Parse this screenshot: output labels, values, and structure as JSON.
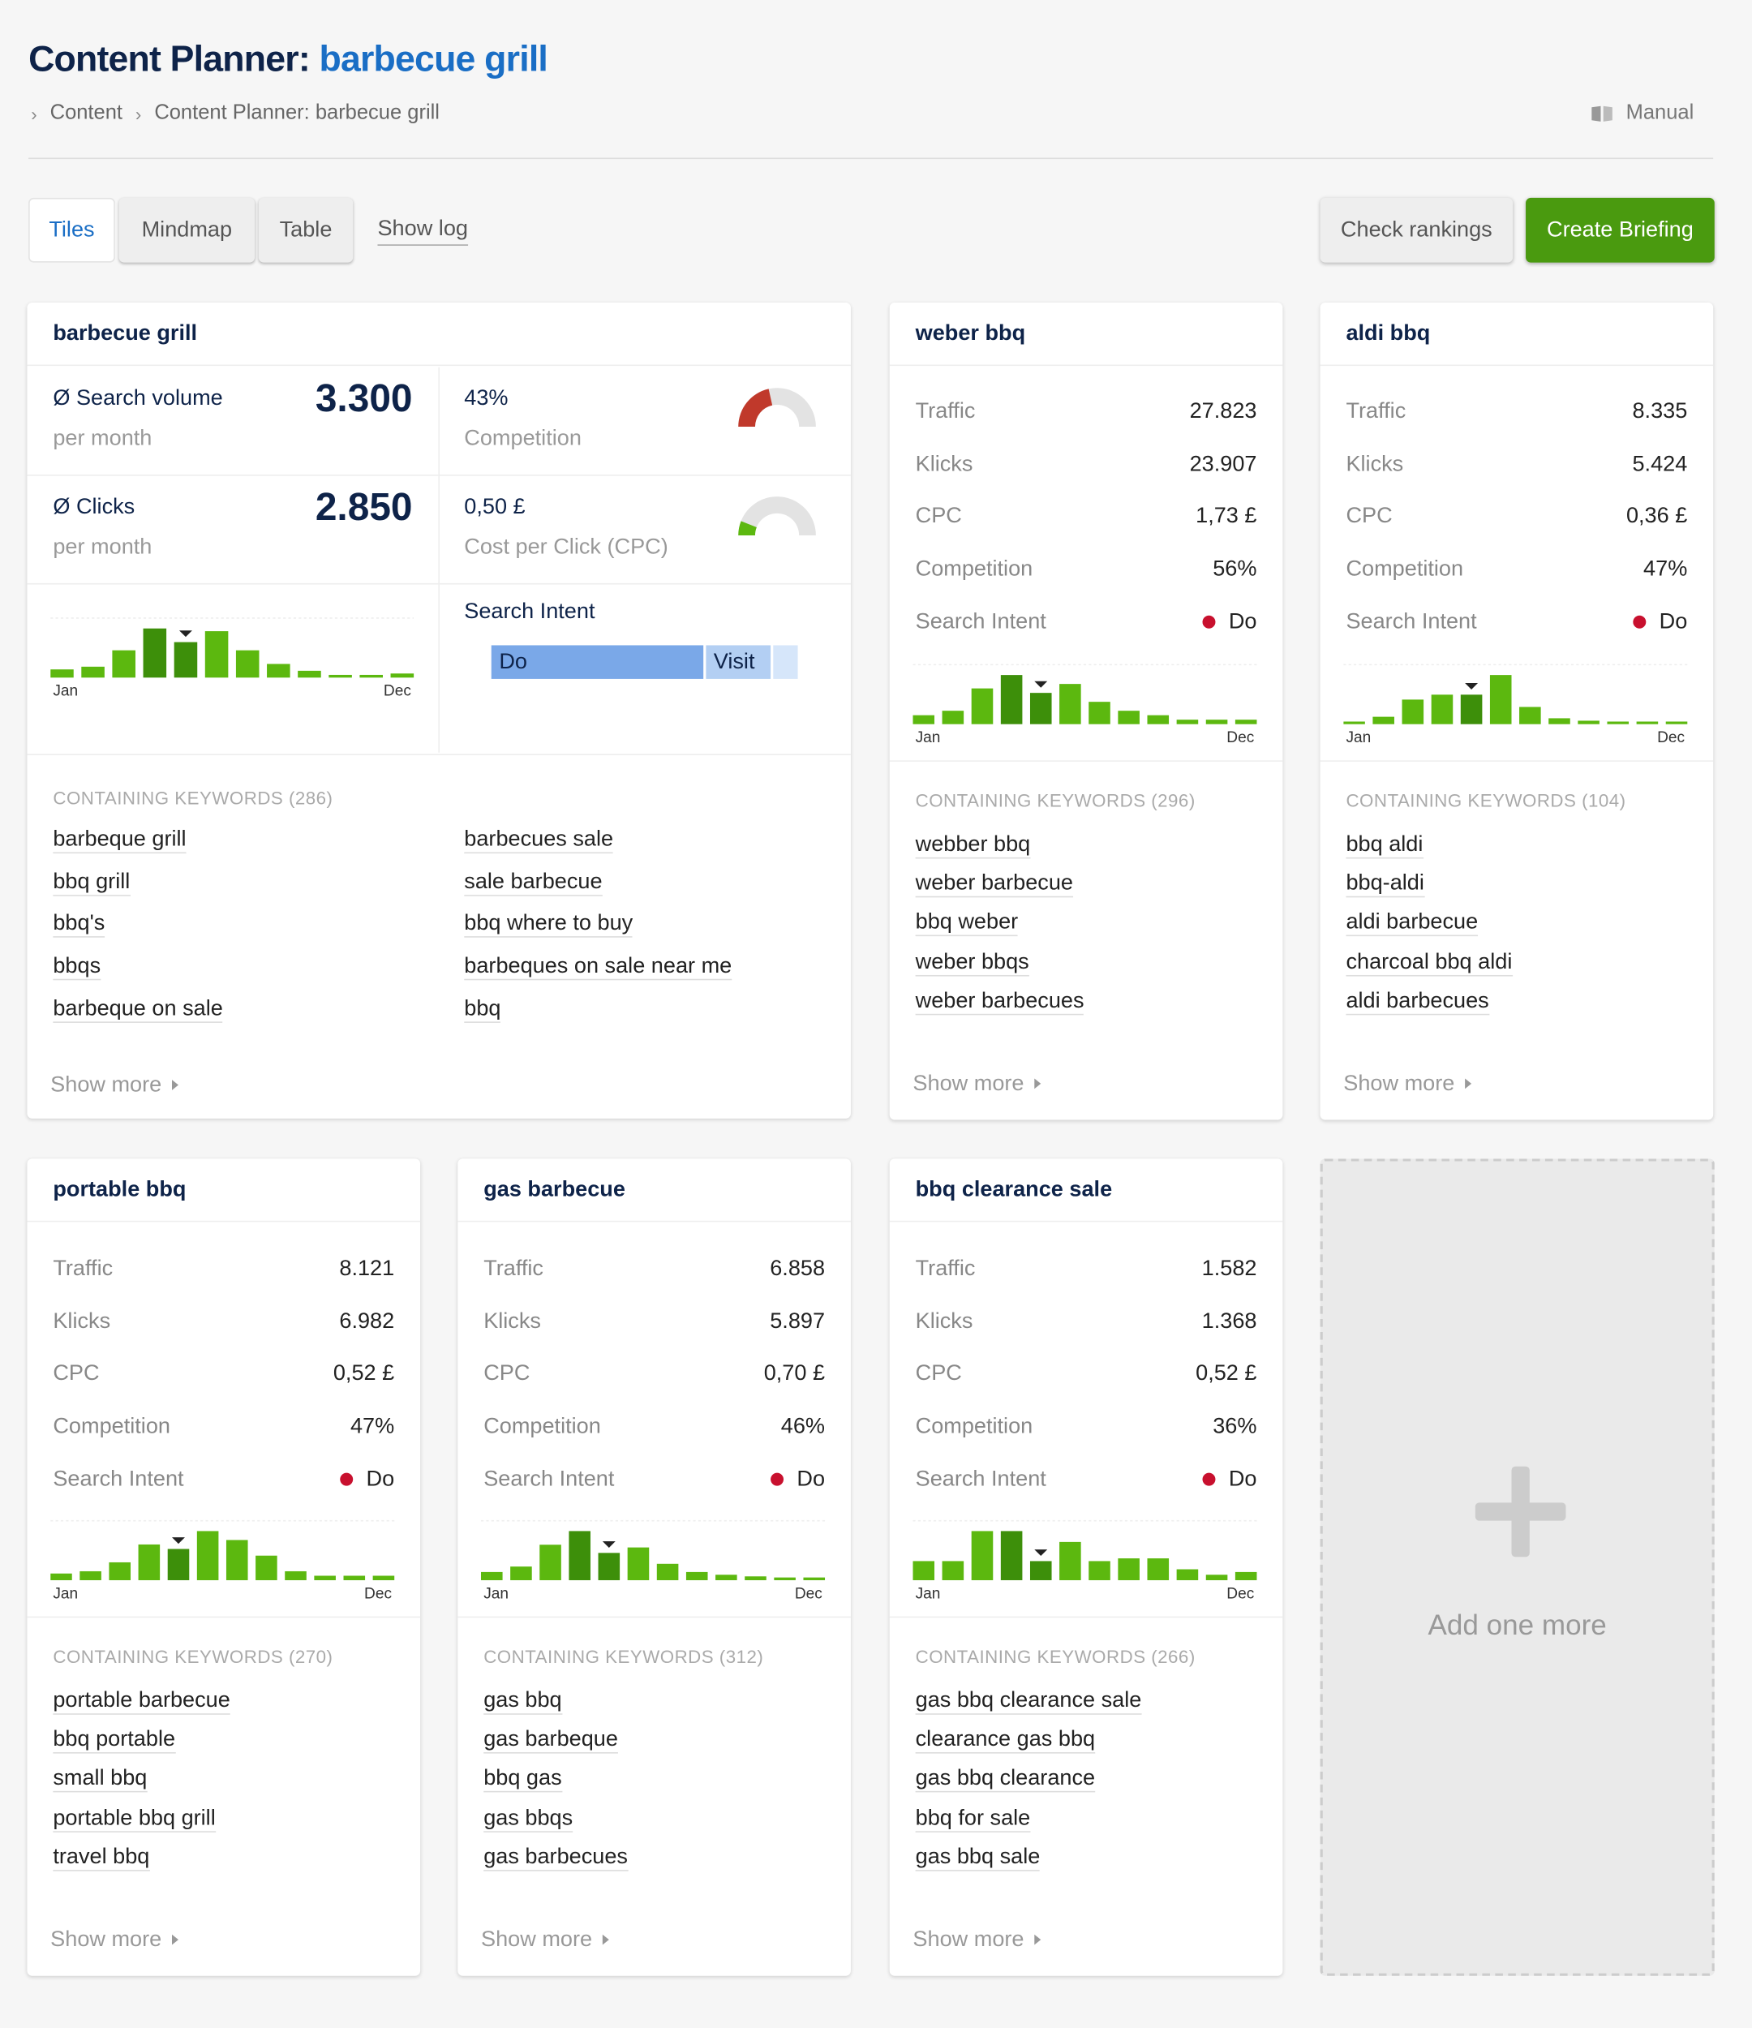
{
  "title": {
    "prefix": "Content Planner:",
    "keyword": "barbecue grill"
  },
  "breadcrumb": [
    "Content",
    "Content Planner: barbecue grill"
  ],
  "manual_label": "Manual",
  "tabs": [
    "Tiles",
    "Mindmap",
    "Table"
  ],
  "show_log_label": "Show log",
  "check_rankings_label": "Check rankings",
  "create_briefing_label": "Create Briefing",
  "colors": {
    "accent": "#1a6ec5",
    "navy": "#0e2349",
    "bar_green": "#5cb80f",
    "bar_dark": "#3d8f0a",
    "create": "#4a9a0f",
    "competition": "#c0392b",
    "intent_do": "#7aa8e8",
    "intent_visit": "#b3cff3"
  },
  "main": {
    "name": "barbecue grill",
    "search_volume_label": "Ø Search volume",
    "search_volume_value": "3.300",
    "per_month": "per month",
    "clicks_label": "Ø Clicks",
    "clicks_value": "2.850",
    "competition_value": "43%",
    "competition_label": "Competition",
    "competition_fraction": 0.43,
    "cpc_value": "0,50 £",
    "cpc_label": "Cost per Click (CPC)",
    "cpc_fraction": 0.12,
    "search_intent_label": "Search Intent",
    "intent_do": "Do",
    "intent_visit": "Visit",
    "intent_shares": [
      0.7,
      0.22,
      0.08
    ],
    "keywords_title": "CONTAINING KEYWORDS (286)",
    "keywords_left": [
      "barbeque grill",
      "bbq grill",
      "bbq's",
      "bbqs",
      "barbeque on sale"
    ],
    "keywords_right": [
      "barbecues sale",
      "sale barbecue",
      "bbq where to buy",
      "barbeques on sale near me",
      "bbq"
    ],
    "show_more": "Show more",
    "chart": {
      "values": [
        3,
        4,
        10,
        18,
        13,
        17,
        10,
        5,
        2.5,
        1,
        1,
        1.5
      ],
      "current": 4,
      "start": "Jan",
      "end": "Dec"
    }
  },
  "labels": {
    "traffic": "Traffic",
    "klicks": "Klicks",
    "cpc": "CPC",
    "competition": "Competition",
    "intent": "Search Intent",
    "show_more": "Show more",
    "jan": "Jan",
    "dec": "Dec"
  },
  "cards": [
    {
      "name": "weber bbq",
      "traffic": "27.823",
      "klicks": "23.907",
      "cpc": "1,73 £",
      "competition": "56%",
      "intent": "Do",
      "keywords_title": "CONTAINING KEYWORDS (296)",
      "keywords": [
        "webber bbq",
        "weber barbecue",
        "bbq weber",
        "weber bbqs",
        "weber barbecues"
      ],
      "chart": [
        2,
        3,
        8,
        11,
        7,
        9,
        5,
        3,
        2,
        1,
        1,
        1
      ],
      "current": 4
    },
    {
      "name": "aldi bbq",
      "traffic": "8.335",
      "klicks": "5.424",
      "cpc": "0,36 £",
      "competition": "47%",
      "intent": "Do",
      "keywords_title": "CONTAINING KEYWORDS (104)",
      "keywords": [
        "bbq aldi",
        "bbq-aldi",
        "aldi barbecue",
        "charcoal bbq aldi",
        "aldi barbecues"
      ],
      "chart": [
        0.5,
        1.5,
        5,
        6,
        6,
        10,
        3.5,
        1.2,
        0.7,
        0.5,
        0.3,
        0.5
      ],
      "current": 4
    },
    {
      "name": "portable bbq",
      "traffic": "8.121",
      "klicks": "6.982",
      "cpc": "0,52 £",
      "competition": "47%",
      "intent": "Do",
      "keywords_title": "CONTAINING KEYWORDS (270)",
      "keywords": [
        "portable barbecue",
        "bbq portable",
        "small bbq",
        "portable bbq grill",
        "travel bbq"
      ],
      "chart": [
        1.5,
        2,
        4,
        8,
        7,
        11,
        9,
        5.5,
        2,
        1,
        1,
        1
      ],
      "current": 4
    },
    {
      "name": "gas barbecue",
      "traffic": "6.858",
      "klicks": "5.897",
      "cpc": "0,70 £",
      "competition": "46%",
      "intent": "Do",
      "keywords_title": "CONTAINING KEYWORDS (312)",
      "keywords": [
        "gas bbq",
        "gas barbeque",
        "bbq gas",
        "gas bbqs",
        "gas barbecues"
      ],
      "chart": [
        1.5,
        2.5,
        6.5,
        9,
        5,
        6,
        3,
        1.5,
        1,
        0.7,
        0.5,
        0.5
      ],
      "current": 4
    },
    {
      "name": "bbq clearance sale",
      "traffic": "1.582",
      "klicks": "1.368",
      "cpc": "0,52 £",
      "competition": "36%",
      "intent": "Do",
      "keywords_title": "CONTAINING KEYWORDS (266)",
      "keywords": [
        "gas bbq clearance sale",
        "clearance gas bbq",
        "gas bbq clearance",
        "bbq for sale",
        "gas bbq sale"
      ],
      "chart": [
        3.5,
        3.5,
        9,
        9,
        3.5,
        7,
        3.5,
        4,
        4,
        2,
        1,
        1.5
      ],
      "current": 4
    }
  ],
  "add_label": "Add one more"
}
